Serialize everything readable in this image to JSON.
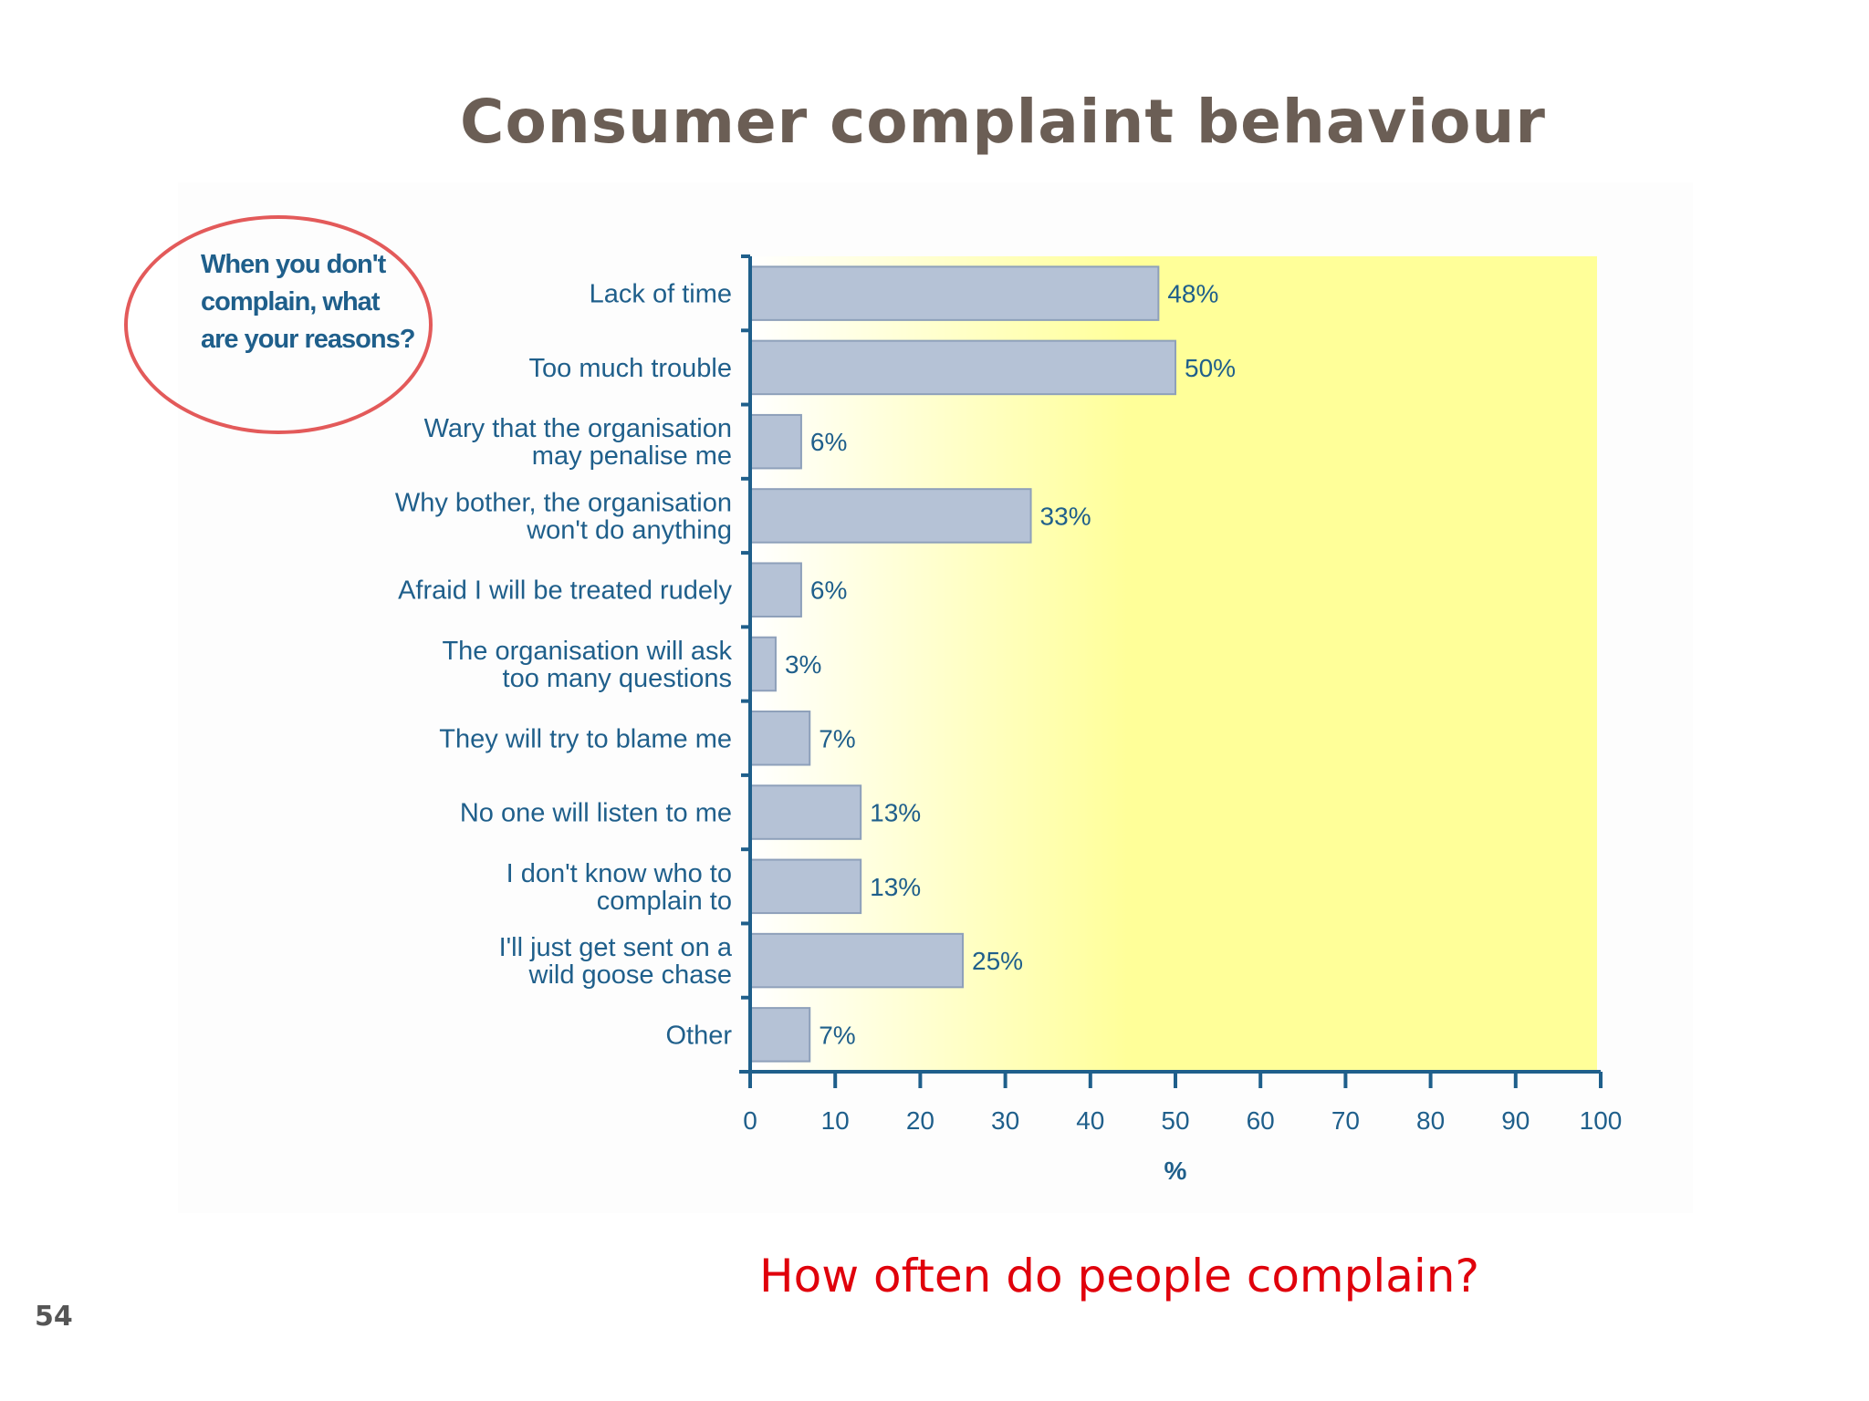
{
  "slide": {
    "title": "Consumer complaint behaviour",
    "callout": "When you don't complain, what are your reasons?",
    "question": "How often do people complain?",
    "page_number": "54"
  },
  "colors": {
    "title": "#6b5e55",
    "bar_fill": "#b5c2d6",
    "bar_stroke": "#8ea0ba",
    "plot_bg_start": "#ffffff",
    "plot_bg_end": "#ffff99",
    "axis": "#1f5f8b",
    "text": "#1f5f8b",
    "callout_border": "#e35a5a",
    "question": "#e0000b"
  },
  "chart_data": {
    "type": "bar",
    "orientation": "horizontal",
    "categories": [
      [
        "Lack of time"
      ],
      [
        "Too much trouble"
      ],
      [
        "Wary that the organisation",
        "may penalise me"
      ],
      [
        "Why bother, the organisation",
        "won't do anything"
      ],
      [
        "Afraid I will be treated rudely"
      ],
      [
        "The organisation will ask",
        "too many questions"
      ],
      [
        "They will try to blame me"
      ],
      [
        "No one will listen to me"
      ],
      [
        "I don't know who to",
        "complain to"
      ],
      [
        "I'll just get sent on a",
        "wild goose chase"
      ],
      [
        "Other"
      ]
    ],
    "values": [
      48,
      50,
      6,
      33,
      6,
      3,
      7,
      13,
      13,
      25,
      7
    ],
    "value_labels": [
      "48%",
      "50%",
      "6%",
      "33%",
      "6%",
      "3%",
      "7%",
      "13%",
      "13%",
      "25%",
      "7%"
    ],
    "xlabel": "%",
    "xlim": [
      0,
      100
    ],
    "xticks": [
      0,
      10,
      20,
      30,
      40,
      50,
      60,
      70,
      80,
      90,
      100
    ],
    "grid": false
  }
}
